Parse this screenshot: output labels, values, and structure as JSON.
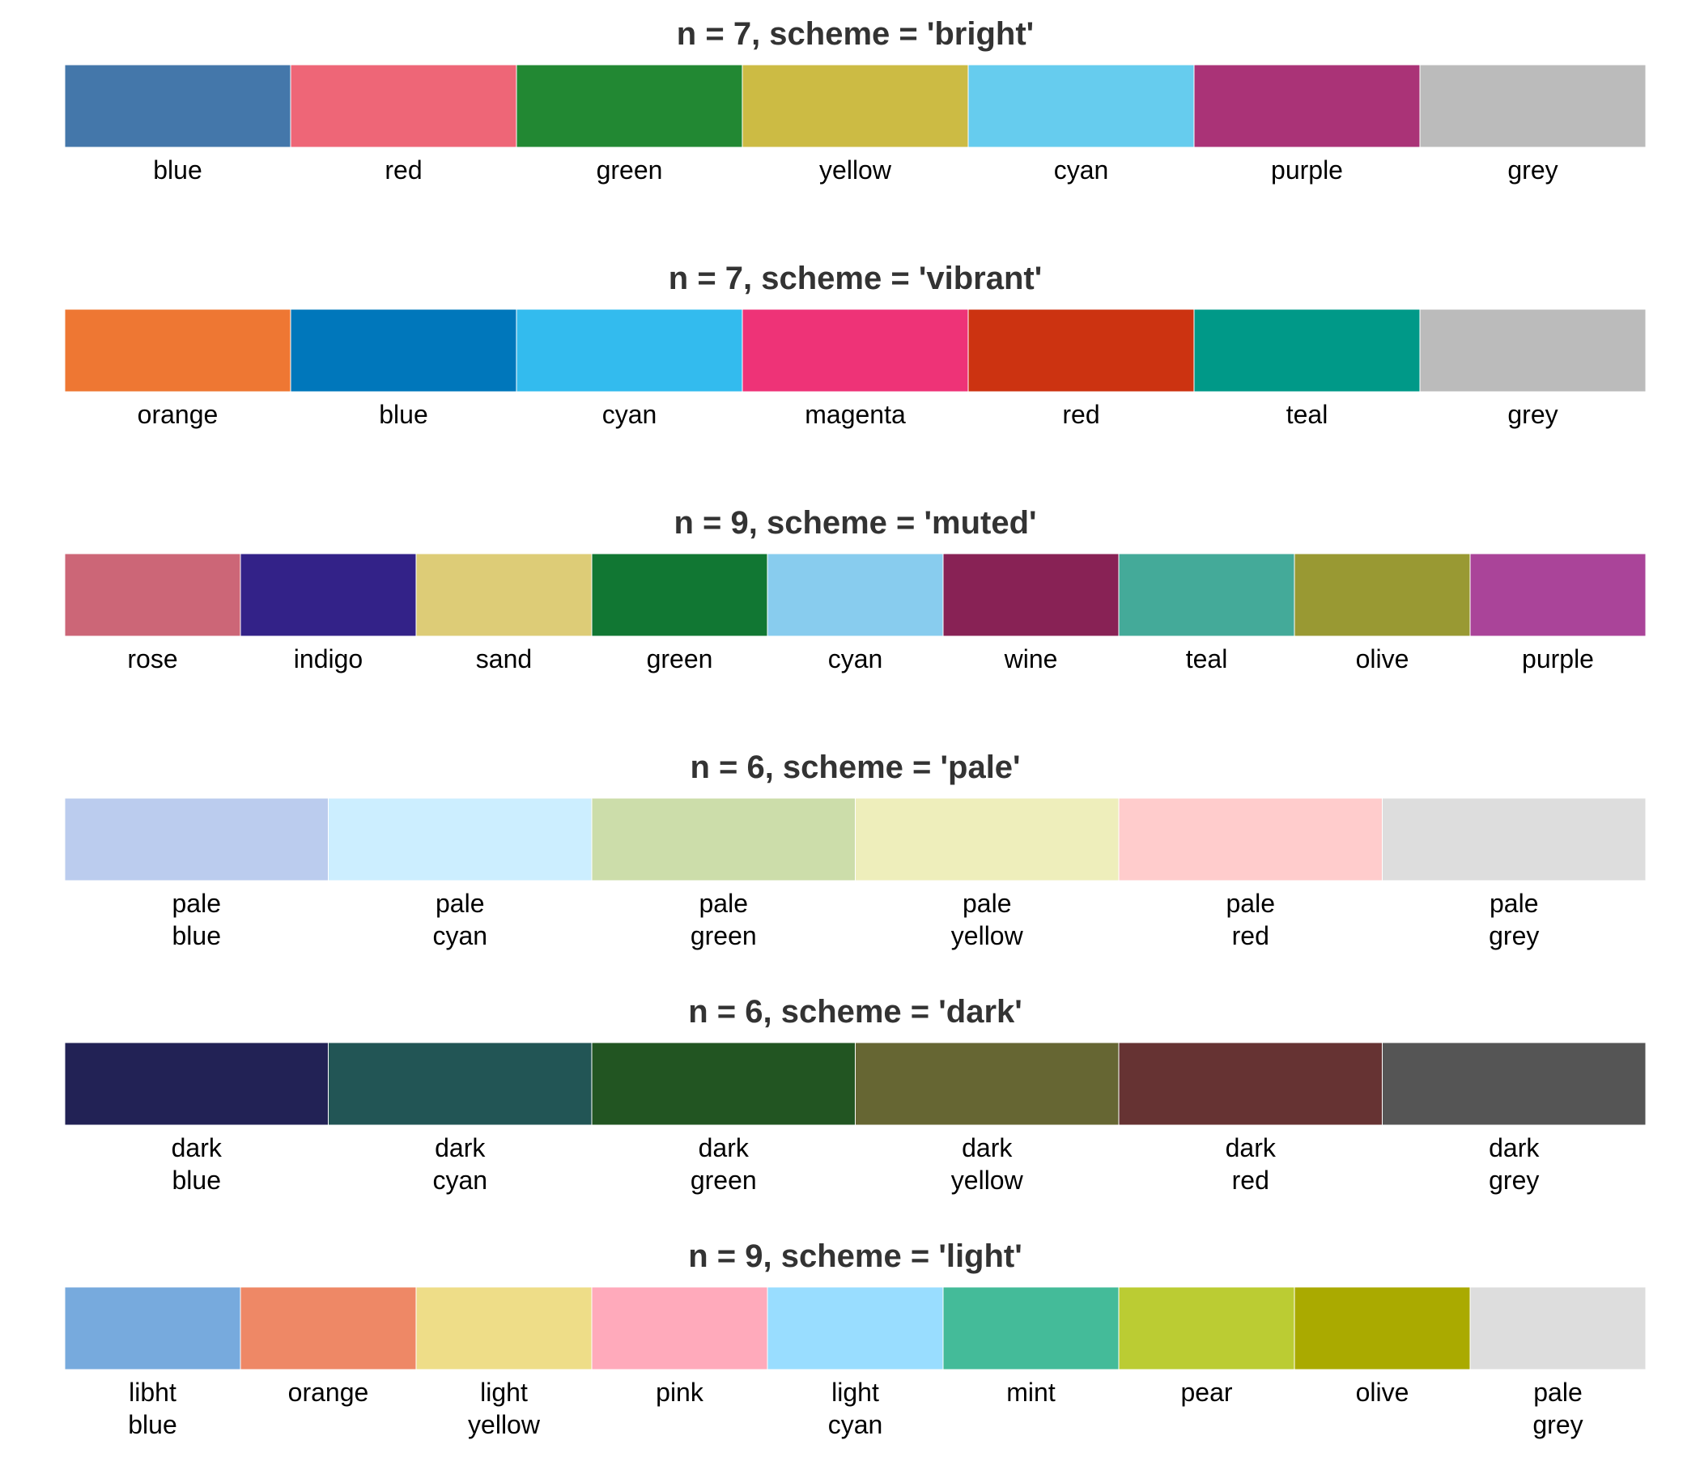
{
  "chart_data": [
    {
      "type": "table",
      "title": "n = 7, scheme = 'bright'",
      "swatches": [
        {
          "label": [
            "blue"
          ],
          "color": "#4477AA"
        },
        {
          "label": [
            "red"
          ],
          "color": "#EE6677"
        },
        {
          "label": [
            "green"
          ],
          "color": "#228833"
        },
        {
          "label": [
            "yellow"
          ],
          "color": "#CCBB44"
        },
        {
          "label": [
            "cyan"
          ],
          "color": "#66CCEE"
        },
        {
          "label": [
            "purple"
          ],
          "color": "#AA3377"
        },
        {
          "label": [
            "grey"
          ],
          "color": "#BBBBBB"
        }
      ]
    },
    {
      "type": "table",
      "title": "n = 7, scheme = 'vibrant'",
      "swatches": [
        {
          "label": [
            "orange"
          ],
          "color": "#EE7733"
        },
        {
          "label": [
            "blue"
          ],
          "color": "#0077BB"
        },
        {
          "label": [
            "cyan"
          ],
          "color": "#33BBEE"
        },
        {
          "label": [
            "magenta"
          ],
          "color": "#EE3377"
        },
        {
          "label": [
            "red"
          ],
          "color": "#CC3311"
        },
        {
          "label": [
            "teal"
          ],
          "color": "#009988"
        },
        {
          "label": [
            "grey"
          ],
          "color": "#BBBBBB"
        }
      ]
    },
    {
      "type": "table",
      "title": "n = 9, scheme = 'muted'",
      "swatches": [
        {
          "label": [
            "rose"
          ],
          "color": "#CC6677"
        },
        {
          "label": [
            "indigo"
          ],
          "color": "#332288"
        },
        {
          "label": [
            "sand"
          ],
          "color": "#DDCC77"
        },
        {
          "label": [
            "green"
          ],
          "color": "#117733"
        },
        {
          "label": [
            "cyan"
          ],
          "color": "#88CCEE"
        },
        {
          "label": [
            "wine"
          ],
          "color": "#882255"
        },
        {
          "label": [
            "teal"
          ],
          "color": "#44AA99"
        },
        {
          "label": [
            "olive"
          ],
          "color": "#999933"
        },
        {
          "label": [
            "purple"
          ],
          "color": "#AA4499"
        }
      ]
    },
    {
      "type": "table",
      "title": "n = 6, scheme = 'pale'",
      "swatches": [
        {
          "label": [
            "pale",
            "blue"
          ],
          "color": "#BBCCEE"
        },
        {
          "label": [
            "pale",
            "cyan"
          ],
          "color": "#CCEEFF"
        },
        {
          "label": [
            "pale",
            "green"
          ],
          "color": "#CCDDAA"
        },
        {
          "label": [
            "pale",
            "yellow"
          ],
          "color": "#EEEEBB"
        },
        {
          "label": [
            "pale",
            "red"
          ],
          "color": "#FFCCCC"
        },
        {
          "label": [
            "pale",
            "grey"
          ],
          "color": "#DDDDDD"
        }
      ]
    },
    {
      "type": "table",
      "title": "n = 6, scheme = 'dark'",
      "swatches": [
        {
          "label": [
            "dark",
            "blue"
          ],
          "color": "#222255"
        },
        {
          "label": [
            "dark",
            "cyan"
          ],
          "color": "#225555"
        },
        {
          "label": [
            "dark",
            "green"
          ],
          "color": "#225522"
        },
        {
          "label": [
            "dark",
            "yellow"
          ],
          "color": "#666633"
        },
        {
          "label": [
            "dark",
            "red"
          ],
          "color": "#663333"
        },
        {
          "label": [
            "dark",
            "grey"
          ],
          "color": "#555555"
        }
      ]
    },
    {
      "type": "table",
      "title": "n = 9, scheme = 'light'",
      "swatches": [
        {
          "label": [
            "libht",
            "blue"
          ],
          "color": "#77AADD"
        },
        {
          "label": [
            "orange"
          ],
          "color": "#EE8866"
        },
        {
          "label": [
            "light",
            "yellow"
          ],
          "color": "#EEDD88"
        },
        {
          "label": [
            "pink"
          ],
          "color": "#FFAABB"
        },
        {
          "label": [
            "light",
            "cyan"
          ],
          "color": "#99DDFF"
        },
        {
          "label": [
            "mint"
          ],
          "color": "#44BB99"
        },
        {
          "label": [
            "pear"
          ],
          "color": "#BBCC33"
        },
        {
          "label": [
            "olive"
          ],
          "color": "#AAAA00"
        },
        {
          "label": [
            "pale",
            "grey"
          ],
          "color": "#DDDDDD"
        }
      ]
    }
  ]
}
